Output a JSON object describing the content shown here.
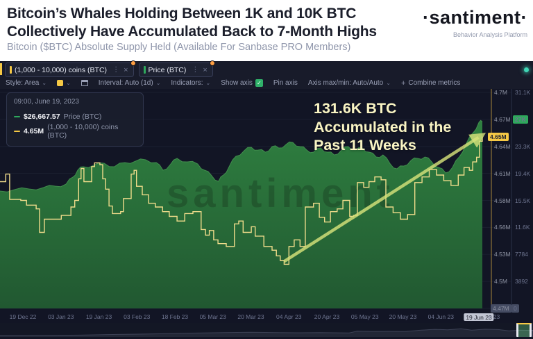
{
  "header": {
    "title_line1": "Bitcoin’s Whales Holding Between 1K and 10K BTC",
    "title_line2": "Collectively Have Accumulated Back to 7-Month Highs",
    "subtitle": "Bitcoin ($BTC) Absolute Supply Held (Available For Sanbase PRO Members)",
    "logo": "·santiment·",
    "tagline": "Behavior Analysis Platform"
  },
  "tabs": [
    {
      "label": "(1,000 - 10,000) coins (BTC)",
      "color": "#f6c945"
    },
    {
      "label": "Price (BTC)",
      "color": "#2ea85c"
    }
  ],
  "toolbar": {
    "style_label": "Style: Area",
    "interval_label": "Interval: Auto (1d)",
    "indicators_label": "Indicators:",
    "show_axis_label": "Show axis",
    "pin_axis_label": "Pin axis",
    "axis_maxmin_label": "Axis max/min: Auto/Auto",
    "combine_label": "Combine metrics"
  },
  "tooltip": {
    "timestamp": "09:00, June 19, 2023",
    "rows": [
      {
        "value": "$26,667.57",
        "label": "Price (BTC)",
        "color": "#2ea85c"
      },
      {
        "value": "4.65M",
        "label": "(1,000 - 10,000) coins (BTC)",
        "color": "#f6c945"
      }
    ]
  },
  "annotation": {
    "line1": "131.6K BTC",
    "line2": "Accumulated in the",
    "line3": "Past 11 Weeks"
  },
  "colors": {
    "accent_yellow": "#f6c945",
    "accent_green": "#2ea85c",
    "supply_line": "#f0dc8b",
    "area_top": "#2f8040",
    "area_bottom": "#215831",
    "arrow": "rgba(214,226,122,0.82)",
    "panel_bg": "#121525",
    "badge_orange": "#ff9f43",
    "teal_dot": "#3fd6b5"
  },
  "chart_data": {
    "type": "area",
    "title": "Bitcoin ($BTC) Absolute Supply Held",
    "x_ticks": [
      "19 Dec 22",
      "03 Jan 23",
      "19 Jan 23",
      "03 Feb 23",
      "18 Feb 23",
      "05 Mar 23",
      "20 Mar 23",
      "04 Apr 23",
      "20 Apr 23",
      "05 May 23",
      "20 May 23",
      "04 Jun 23",
      "19 Jun 23"
    ],
    "x_tick_partial": "n 23",
    "highlighted_x_tick": "19 Jun 23",
    "watermark": "santiment",
    "axes": {
      "supply": {
        "name": "(1,000 - 10,000) coins (BTC)",
        "unit": "M coins",
        "min": 4.47,
        "max": 4.7,
        "current": "4.65M",
        "current_value": 4.653,
        "ticks": [
          {
            "label": "4.7M"
          },
          {
            "label": "4.67M"
          },
          {
            "label": "4.64M"
          },
          {
            "label": "4.61M"
          },
          {
            "label": "4.58M"
          },
          {
            "label": "4.56M"
          },
          {
            "label": "4.53M"
          },
          {
            "label": "4.5M"
          },
          {
            "label": "4.47M",
            "badge": "gray"
          }
        ]
      },
      "price": {
        "name": "Price (BTC)",
        "unit": "K USD",
        "min": 0,
        "max": 31.1,
        "current": "27K",
        "current_value": 26.9,
        "ticks": [
          {
            "label": "31.1K"
          },
          {
            "label": "27K",
            "badge": "green"
          },
          {
            "label": "23.3K"
          },
          {
            "label": "19.4K"
          },
          {
            "label": "15.5K"
          },
          {
            "label": "11.6K"
          },
          {
            "label": "7784"
          },
          {
            "label": "3892"
          },
          {
            "label": "0",
            "badge": "gray"
          }
        ]
      }
    },
    "series": [
      {
        "name": "Price (BTC)",
        "type": "area",
        "unit": "K USD",
        "color": "#2f8040",
        "points": [
          [
            0,
            16.9
          ],
          [
            0.03,
            17.1
          ],
          [
            0.06,
            17.2
          ],
          [
            0.09,
            17.4
          ],
          [
            0.115,
            17.6
          ],
          [
            0.137,
            17.9
          ],
          [
            0.151,
            18.9
          ],
          [
            0.161,
            19.9
          ],
          [
            0.173,
            20.4
          ],
          [
            0.194,
            20.6
          ],
          [
            0.216,
            20.9
          ],
          [
            0.237,
            20.4
          ],
          [
            0.259,
            21.0
          ],
          [
            0.281,
            21.2
          ],
          [
            0.302,
            21.4
          ],
          [
            0.324,
            21.0
          ],
          [
            0.338,
            19.9
          ],
          [
            0.353,
            20.7
          ],
          [
            0.367,
            21.6
          ],
          [
            0.388,
            21.1
          ],
          [
            0.41,
            20.8
          ],
          [
            0.424,
            19.9
          ],
          [
            0.439,
            19.1
          ],
          [
            0.453,
            18.3
          ],
          [
            0.463,
            19.2
          ],
          [
            0.475,
            20.4
          ],
          [
            0.489,
            21.9
          ],
          [
            0.506,
            22.7
          ],
          [
            0.521,
            23.2
          ],
          [
            0.535,
            22.8
          ],
          [
            0.55,
            22.5
          ],
          [
            0.564,
            23.3
          ],
          [
            0.578,
            23.1
          ],
          [
            0.593,
            23.6
          ],
          [
            0.607,
            23.9
          ],
          [
            0.622,
            23.3
          ],
          [
            0.636,
            22.8
          ],
          [
            0.65,
            22.5
          ],
          [
            0.665,
            23.1
          ],
          [
            0.679,
            22.5
          ],
          [
            0.693,
            22.1
          ],
          [
            0.708,
            22.8
          ],
          [
            0.722,
            23.3
          ],
          [
            0.737,
            22.8
          ],
          [
            0.751,
            23.1
          ],
          [
            0.765,
            22.5
          ],
          [
            0.78,
            21.8
          ],
          [
            0.794,
            22.1
          ],
          [
            0.809,
            20.8
          ],
          [
            0.823,
            20.1
          ],
          [
            0.837,
            20.5
          ],
          [
            0.852,
            21.3
          ],
          [
            0.866,
            21.6
          ],
          [
            0.881,
            21.8
          ],
          [
            0.895,
            21.1
          ],
          [
            0.909,
            20.3
          ],
          [
            0.924,
            19.5
          ],
          [
            0.938,
            20.3
          ],
          [
            0.952,
            21.8
          ],
          [
            0.967,
            23.8
          ],
          [
            0.981,
            25.3
          ],
          [
            0.993,
            26.8
          ],
          [
            1,
            26.9
          ]
        ]
      },
      {
        "name": "(1,000 - 10,000) coins (BTC)",
        "type": "step-line",
        "unit": "M coins",
        "color": "#f0dc8b",
        "points": [
          [
            0,
            4.605
          ],
          [
            0.012,
            4.613
          ],
          [
            0.02,
            4.586
          ],
          [
            0.043,
            4.585
          ],
          [
            0.055,
            4.58
          ],
          [
            0.075,
            4.576
          ],
          [
            0.082,
            4.551
          ],
          [
            0.092,
            4.565
          ],
          [
            0.127,
            4.569
          ],
          [
            0.147,
            4.578
          ],
          [
            0.155,
            4.585
          ],
          [
            0.163,
            4.608
          ],
          [
            0.168,
            4.619
          ],
          [
            0.174,
            4.605
          ],
          [
            0.19,
            4.621
          ],
          [
            0.196,
            4.625
          ],
          [
            0.207,
            4.623
          ],
          [
            0.213,
            4.608
          ],
          [
            0.219,
            4.597
          ],
          [
            0.226,
            4.579
          ],
          [
            0.233,
            4.571
          ],
          [
            0.25,
            4.573
          ],
          [
            0.256,
            4.587
          ],
          [
            0.272,
            4.613
          ],
          [
            0.278,
            4.617
          ],
          [
            0.283,
            4.6
          ],
          [
            0.295,
            4.591
          ],
          [
            0.308,
            4.582
          ],
          [
            0.322,
            4.578
          ],
          [
            0.337,
            4.573
          ],
          [
            0.351,
            4.568
          ],
          [
            0.367,
            4.563
          ],
          [
            0.383,
            4.571
          ],
          [
            0.4,
            4.573
          ],
          [
            0.417,
            4.554
          ],
          [
            0.426,
            4.548
          ],
          [
            0.434,
            4.553
          ],
          [
            0.443,
            4.543
          ],
          [
            0.452,
            4.539
          ],
          [
            0.469,
            4.536
          ],
          [
            0.486,
            4.56
          ],
          [
            0.495,
            4.563
          ],
          [
            0.504,
            4.551
          ],
          [
            0.521,
            4.557
          ],
          [
            0.529,
            4.547
          ],
          [
            0.547,
            4.536
          ],
          [
            0.564,
            4.532
          ],
          [
            0.573,
            4.526
          ],
          [
            0.581,
            4.521
          ],
          [
            0.589,
            4.517
          ],
          [
            0.599,
            4.536
          ],
          [
            0.61,
            4.543
          ],
          [
            0.622,
            4.536
          ],
          [
            0.633,
            4.578
          ],
          [
            0.65,
            4.582
          ],
          [
            0.662,
            4.567
          ],
          [
            0.673,
            4.562
          ],
          [
            0.685,
            4.573
          ],
          [
            0.699,
            4.576
          ],
          [
            0.711,
            4.585
          ],
          [
            0.725,
            4.568
          ],
          [
            0.733,
            4.569
          ],
          [
            0.741,
            4.604
          ],
          [
            0.754,
            4.599
          ],
          [
            0.765,
            4.605
          ],
          [
            0.777,
            4.61
          ],
          [
            0.79,
            4.607
          ],
          [
            0.8,
            4.578
          ],
          [
            0.815,
            4.572
          ],
          [
            0.83,
            4.565
          ],
          [
            0.845,
            4.57
          ],
          [
            0.86,
            4.604
          ],
          [
            0.875,
            4.61
          ],
          [
            0.89,
            4.618
          ],
          [
            0.905,
            4.612
          ],
          [
            0.92,
            4.606
          ],
          [
            0.935,
            4.601
          ],
          [
            0.95,
            4.612
          ],
          [
            0.962,
            4.62
          ],
          [
            0.973,
            4.617
          ],
          [
            0.98,
            4.626
          ],
          [
            0.988,
            4.631
          ],
          [
            0.994,
            4.648
          ],
          [
            1,
            4.653
          ]
        ]
      }
    ],
    "arrow": {
      "x1": 0.589,
      "v1": 4.52,
      "x2": 0.992,
      "v2": 4.652
    },
    "navigator": {
      "points": [
        [
          0,
          0.06
        ],
        [
          0.08,
          0.07
        ],
        [
          0.15,
          0.1
        ],
        [
          0.22,
          0.16
        ],
        [
          0.3,
          0.22
        ],
        [
          0.36,
          0.28
        ],
        [
          0.42,
          0.33
        ],
        [
          0.47,
          0.36
        ],
        [
          0.52,
          0.33
        ],
        [
          0.56,
          0.31
        ],
        [
          0.6,
          0.33
        ],
        [
          0.63,
          0.31
        ],
        [
          0.655,
          0.3
        ],
        [
          0.67,
          0.45
        ],
        [
          0.7,
          0.43
        ],
        [
          0.73,
          0.44
        ],
        [
          0.76,
          0.42
        ],
        [
          0.79,
          0.55
        ],
        [
          0.815,
          0.62
        ],
        [
          0.84,
          0.58
        ],
        [
          0.865,
          0.67
        ],
        [
          0.885,
          0.55
        ],
        [
          0.91,
          0.63
        ],
        [
          0.935,
          0.6
        ],
        [
          0.955,
          0.48
        ],
        [
          0.975,
          0.55
        ],
        [
          1,
          0.52
        ]
      ],
      "selection": [
        0.969,
        0.998
      ]
    }
  }
}
